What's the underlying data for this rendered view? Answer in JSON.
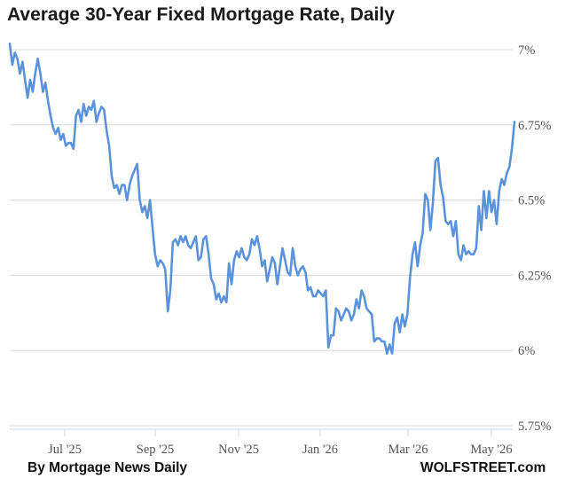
{
  "chart_data": {
    "type": "line",
    "title": "Average 30-Year Fixed Mortgage Rate, Daily",
    "xlabel": "",
    "ylabel": "",
    "ylim": [
      5.75,
      7.0
    ],
    "y_ticks": [
      {
        "value": 7.0,
        "label": "7%"
      },
      {
        "value": 6.75,
        "label": "6.75%"
      },
      {
        "value": 6.5,
        "label": "6.5%"
      },
      {
        "value": 6.25,
        "label": "6.25%"
      },
      {
        "value": 6.0,
        "label": "6%"
      },
      {
        "value": 5.75,
        "label": "5.75%"
      }
    ],
    "x_ticks": [
      "Jul '25",
      "Sep '25",
      "Nov '25",
      "Jan '26",
      "Mar '26",
      "May '26"
    ],
    "grid": "horizontal",
    "line_color": "#5b92dc",
    "series": [
      {
        "values": [
          7.02,
          6.95,
          6.99,
          6.97,
          6.92,
          6.96,
          6.9,
          6.84,
          6.9,
          6.86,
          6.92,
          6.97,
          6.92,
          6.86,
          6.89,
          6.83,
          6.78,
          6.74,
          6.72,
          6.74,
          6.7,
          6.72,
          6.68,
          6.69,
          6.69,
          6.67,
          6.78,
          6.8,
          6.76,
          6.82,
          6.78,
          6.81,
          6.8,
          6.83,
          6.76,
          6.79,
          6.81,
          6.8,
          6.73,
          6.68,
          6.58,
          6.54,
          6.55,
          6.52,
          6.55,
          6.55,
          6.5,
          6.55,
          6.58,
          6.6,
          6.62,
          6.5,
          6.46,
          6.48,
          6.44,
          6.5,
          6.41,
          6.32,
          6.28,
          6.3,
          6.29,
          6.27,
          6.13,
          6.2,
          6.36,
          6.37,
          6.35,
          6.38,
          6.36,
          6.38,
          6.35,
          6.34,
          6.36,
          6.38,
          6.3,
          6.31,
          6.37,
          6.38,
          6.32,
          6.24,
          6.22,
          6.17,
          6.19,
          6.16,
          6.18,
          6.16,
          6.29,
          6.22,
          6.3,
          6.33,
          6.31,
          6.34,
          6.31,
          6.3,
          6.32,
          6.37,
          6.35,
          6.38,
          6.34,
          6.28,
          6.3,
          6.23,
          6.27,
          6.31,
          6.29,
          6.22,
          6.28,
          6.34,
          6.3,
          6.26,
          6.25,
          6.34,
          6.28,
          6.25,
          6.27,
          6.28,
          6.26,
          6.2,
          6.21,
          6.18,
          6.18,
          6.2,
          6.19,
          6.18,
          6.2,
          6.01,
          6.05,
          6.05,
          6.14,
          6.13,
          6.1,
          6.12,
          6.14,
          6.13,
          6.1,
          6.12,
          6.17,
          6.14,
          6.2,
          6.18,
          6.14,
          6.13,
          6.12,
          6.03,
          6.04,
          6.04,
          6.03,
          6.03,
          5.99,
          6.02,
          5.99,
          6.09,
          6.11,
          6.06,
          6.12,
          6.08,
          6.12,
          6.24,
          6.32,
          6.36,
          6.28,
          6.35,
          6.39,
          6.52,
          6.5,
          6.4,
          6.49,
          6.63,
          6.64,
          6.55,
          6.51,
          6.43,
          6.42,
          6.43,
          6.38,
          6.43,
          6.32,
          6.3,
          6.35,
          6.32,
          6.33,
          6.32,
          6.32,
          6.34,
          6.48,
          6.4,
          6.53,
          6.44,
          6.53,
          6.46,
          6.5,
          6.42,
          6.53,
          6.57,
          6.55,
          6.59,
          6.61,
          6.67,
          6.76
        ]
      }
    ]
  },
  "footer": {
    "source": "By Mortgage News Daily",
    "brand": "WOLFSTREET.com"
  }
}
